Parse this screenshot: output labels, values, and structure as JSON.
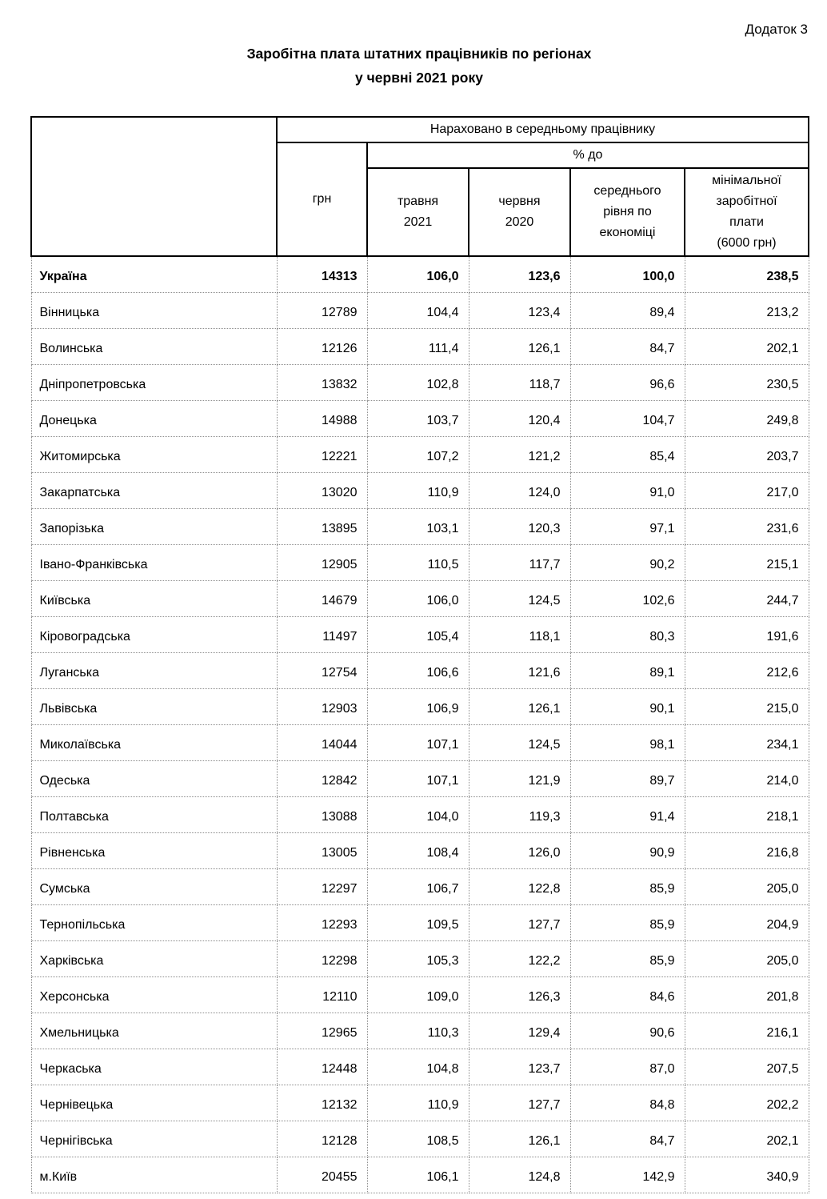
{
  "page": {
    "appendix": "Додаток 3",
    "title_line1": "Заробітна плата штатних працівників по регіонах",
    "title_line2": "у червні 2021 року"
  },
  "table": {
    "header": {
      "group": "Нараховано в середньому працівнику",
      "uah": "грн",
      "percent_group": "% до",
      "col_may": "травня\n2021",
      "col_june": "червня\n2020",
      "col_economy": "середнього\nрівня по\nекономіці",
      "col_minimum": "мінімальної\nзаробітної\nплати\n(6000 грн)"
    },
    "rows": [
      {
        "region": "Україна",
        "uah": "14313",
        "to_may_2021": "106,0",
        "to_june_2020": "123,6",
        "to_economy_avg": "100,0",
        "to_min_wage": "238,5",
        "bold": true
      },
      {
        "region": "Вінницька",
        "uah": "12789",
        "to_may_2021": "104,4",
        "to_june_2020": "123,4",
        "to_economy_avg": "89,4",
        "to_min_wage": "213,2"
      },
      {
        "region": "Волинська",
        "uah": "12126",
        "to_may_2021": "111,4",
        "to_june_2020": "126,1",
        "to_economy_avg": "84,7",
        "to_min_wage": "202,1"
      },
      {
        "region": "Дніпропетровська",
        "uah": "13832",
        "to_may_2021": "102,8",
        "to_june_2020": "118,7",
        "to_economy_avg": "96,6",
        "to_min_wage": "230,5"
      },
      {
        "region": "Донецька",
        "uah": "14988",
        "to_may_2021": "103,7",
        "to_june_2020": "120,4",
        "to_economy_avg": "104,7",
        "to_min_wage": "249,8"
      },
      {
        "region": "Житомирська",
        "uah": "12221",
        "to_may_2021": "107,2",
        "to_june_2020": "121,2",
        "to_economy_avg": "85,4",
        "to_min_wage": "203,7"
      },
      {
        "region": "Закарпатська",
        "uah": "13020",
        "to_may_2021": "110,9",
        "to_june_2020": "124,0",
        "to_economy_avg": "91,0",
        "to_min_wage": "217,0"
      },
      {
        "region": "Запорізька",
        "uah": "13895",
        "to_may_2021": "103,1",
        "to_june_2020": "120,3",
        "to_economy_avg": "97,1",
        "to_min_wage": "231,6"
      },
      {
        "region": "Івано-Франківська",
        "uah": "12905",
        "to_may_2021": "110,5",
        "to_june_2020": "117,7",
        "to_economy_avg": "90,2",
        "to_min_wage": "215,1"
      },
      {
        "region": "Київська",
        "uah": "14679",
        "to_may_2021": "106,0",
        "to_june_2020": "124,5",
        "to_economy_avg": "102,6",
        "to_min_wage": "244,7"
      },
      {
        "region": "Кіровоградська",
        "uah": "11497",
        "to_may_2021": "105,4",
        "to_june_2020": "118,1",
        "to_economy_avg": "80,3",
        "to_min_wage": "191,6"
      },
      {
        "region": "Луганська",
        "uah": "12754",
        "to_may_2021": "106,6",
        "to_june_2020": "121,6",
        "to_economy_avg": "89,1",
        "to_min_wage": "212,6"
      },
      {
        "region": "Львівська",
        "uah": "12903",
        "to_may_2021": "106,9",
        "to_june_2020": "126,1",
        "to_economy_avg": "90,1",
        "to_min_wage": "215,0"
      },
      {
        "region": "Миколаївська",
        "uah": "14044",
        "to_may_2021": "107,1",
        "to_june_2020": "124,5",
        "to_economy_avg": "98,1",
        "to_min_wage": "234,1"
      },
      {
        "region": "Одеська",
        "uah": "12842",
        "to_may_2021": "107,1",
        "to_june_2020": "121,9",
        "to_economy_avg": "89,7",
        "to_min_wage": "214,0"
      },
      {
        "region": "Полтавська",
        "uah": "13088",
        "to_may_2021": "104,0",
        "to_june_2020": "119,3",
        "to_economy_avg": "91,4",
        "to_min_wage": "218,1"
      },
      {
        "region": "Рівненська",
        "uah": "13005",
        "to_may_2021": "108,4",
        "to_june_2020": "126,0",
        "to_economy_avg": "90,9",
        "to_min_wage": "216,8"
      },
      {
        "region": "Сумська",
        "uah": "12297",
        "to_may_2021": "106,7",
        "to_june_2020": "122,8",
        "to_economy_avg": "85,9",
        "to_min_wage": "205,0"
      },
      {
        "region": "Тернопільська",
        "uah": "12293",
        "to_may_2021": "109,5",
        "to_june_2020": "127,7",
        "to_economy_avg": "85,9",
        "to_min_wage": "204,9"
      },
      {
        "region": "Харківська",
        "uah": "12298",
        "to_may_2021": "105,3",
        "to_june_2020": "122,2",
        "to_economy_avg": "85,9",
        "to_min_wage": "205,0"
      },
      {
        "region": "Херсонська",
        "uah": "12110",
        "to_may_2021": "109,0",
        "to_june_2020": "126,3",
        "to_economy_avg": "84,6",
        "to_min_wage": "201,8"
      },
      {
        "region": "Хмельницька",
        "uah": "12965",
        "to_may_2021": "110,3",
        "to_june_2020": "129,4",
        "to_economy_avg": "90,6",
        "to_min_wage": "216,1"
      },
      {
        "region": "Черкаська",
        "uah": "12448",
        "to_may_2021": "104,8",
        "to_june_2020": "123,7",
        "to_economy_avg": "87,0",
        "to_min_wage": "207,5"
      },
      {
        "region": "Чернівецька",
        "uah": "12132",
        "to_may_2021": "110,9",
        "to_june_2020": "127,7",
        "to_economy_avg": "84,8",
        "to_min_wage": "202,2"
      },
      {
        "region": "Чернігівська",
        "uah": "12128",
        "to_may_2021": "108,5",
        "to_june_2020": "126,1",
        "to_economy_avg": "84,7",
        "to_min_wage": "202,1"
      },
      {
        "region": "м.Київ",
        "uah": "20455",
        "to_may_2021": "106,1",
        "to_june_2020": "124,8",
        "to_economy_avg": "142,9",
        "to_min_wage": "340,9"
      }
    ]
  }
}
